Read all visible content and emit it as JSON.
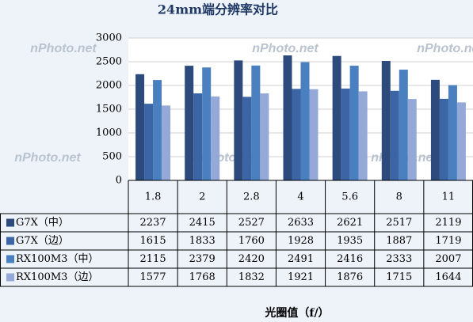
{
  "chart_data": {
    "type": "bar",
    "title": "24mm端分辨率对比",
    "watermark": "nPhoto.net",
    "categories": [
      "1.8",
      "2",
      "2.8",
      "4",
      "5.6",
      "8",
      "11"
    ],
    "series": [
      {
        "name": "G7X（中）",
        "color": "#2c4a7c",
        "values": [
          2237,
          2415,
          2527,
          2633,
          2621,
          2517,
          2119
        ]
      },
      {
        "name": "G7X（边）",
        "color": "#3c65a6",
        "values": [
          1615,
          1833,
          1760,
          1928,
          1935,
          1887,
          1719
        ]
      },
      {
        "name": "RX100M3（中）",
        "color": "#4a7fc0",
        "values": [
          2115,
          2379,
          2420,
          2491,
          2416,
          2333,
          2007
        ]
      },
      {
        "name": "RX100M3（边）",
        "color": "#95a9d8",
        "values": [
          1577,
          1768,
          1832,
          1921,
          1876,
          1715,
          1644
        ]
      }
    ],
    "ylim": [
      0,
      3000
    ],
    "yticks": [
      0,
      500,
      1000,
      1500,
      2000,
      2500,
      3000
    ],
    "grid": true,
    "xlabel": "光圈值（f/）"
  }
}
